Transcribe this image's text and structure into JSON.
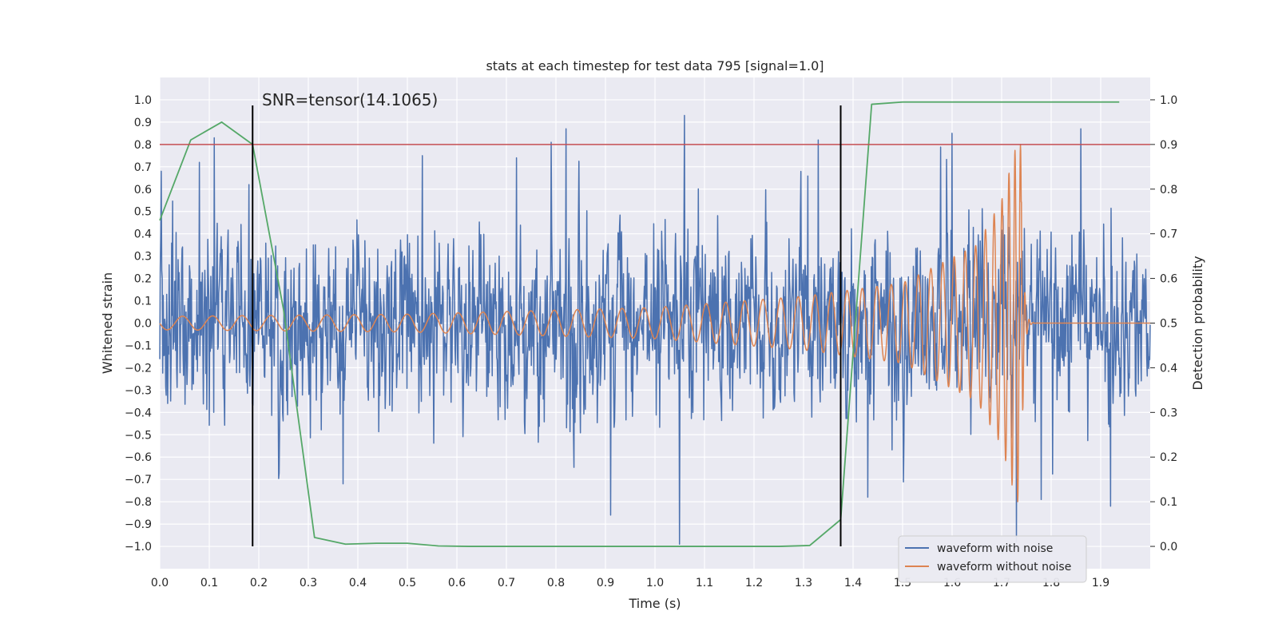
{
  "chart_data": {
    "type": "line",
    "title": "stats at each timestep for test data 795 [signal=1.0]",
    "xlabel": "Time (s)",
    "ylabel": "Whitened strain",
    "y2label": "Detection probability",
    "xlim": [
      0.0,
      2.0
    ],
    "ylim": [
      -1.1,
      1.1
    ],
    "y2lim": [
      -0.05,
      1.05
    ],
    "xticks": [
      "0.0",
      "0.1",
      "0.2",
      "0.3",
      "0.4",
      "0.5",
      "0.6",
      "0.7",
      "0.8",
      "0.9",
      "1.0",
      "1.1",
      "1.2",
      "1.3",
      "1.4",
      "1.5",
      "1.6",
      "1.7",
      "1.8",
      "1.9"
    ],
    "yticks": [
      "1.0",
      "0.9",
      "0.8",
      "0.7",
      "0.6",
      "0.5",
      "0.4",
      "0.3",
      "0.2",
      "0.1",
      "0.0",
      "−0.1",
      "−0.2",
      "−0.3",
      "−0.4",
      "−0.5",
      "−0.6",
      "−0.7",
      "−0.8",
      "−0.9",
      "−1.0"
    ],
    "y2ticks": [
      "1.0",
      "0.9",
      "0.8",
      "0.7",
      "0.6",
      "0.5",
      "0.4",
      "0.3",
      "0.2",
      "0.1",
      "0.0"
    ],
    "grid": true,
    "legend_position": "lower-right",
    "series": [
      {
        "name": "waveform with noise",
        "color": "#4c72b0",
        "axis": "left",
        "kind": "noise",
        "x_range": [
          0.0,
          2.0
        ],
        "samples": 2000,
        "envelope_std": 0.24,
        "peaks": [
          {
            "x": 0.11,
            "y": 0.83
          },
          {
            "x": 0.08,
            "y": 0.72
          },
          {
            "x": 0.18,
            "y": 0.62
          },
          {
            "x": 0.53,
            "y": 0.75
          },
          {
            "x": 0.72,
            "y": 0.74
          },
          {
            "x": 0.79,
            "y": 0.81
          },
          {
            "x": 0.82,
            "y": 0.87
          },
          {
            "x": 1.06,
            "y": 0.93
          },
          {
            "x": 1.33,
            "y": 0.82
          },
          {
            "x": 1.6,
            "y": 0.85
          },
          {
            "x": 1.73,
            "y": 0.97
          },
          {
            "x": 1.86,
            "y": 0.87
          },
          {
            "x": 1.05,
            "y": -0.99
          },
          {
            "x": 0.91,
            "y": -0.86
          },
          {
            "x": 1.73,
            "y": -0.98
          },
          {
            "x": 1.43,
            "y": -0.78
          },
          {
            "x": 1.78,
            "y": -0.79
          },
          {
            "x": 0.37,
            "y": -0.72
          },
          {
            "x": 1.92,
            "y": -0.82
          }
        ]
      },
      {
        "name": "waveform without noise",
        "color": "#dd8452",
        "axis": "left",
        "kind": "chirp",
        "x_range": [
          0.0,
          2.0
        ],
        "merger_time": 1.74,
        "points": [
          {
            "x": 0.0,
            "amp": 0.03,
            "freq": 16
          },
          {
            "x": 0.5,
            "amp": 0.04,
            "freq": 19
          },
          {
            "x": 1.0,
            "amp": 0.07,
            "freq": 23
          },
          {
            "x": 1.3,
            "amp": 0.12,
            "freq": 29
          },
          {
            "x": 1.5,
            "amp": 0.18,
            "freq": 36
          },
          {
            "x": 1.65,
            "amp": 0.35,
            "freq": 48
          },
          {
            "x": 1.7,
            "amp": 0.55,
            "freq": 65
          },
          {
            "x": 1.73,
            "amp": 0.8,
            "freq": 90
          }
        ]
      },
      {
        "name": "",
        "color": "#55a868",
        "axis": "right",
        "kind": "line",
        "x": [
          0.0,
          0.0625,
          0.125,
          0.1875,
          0.25,
          0.3125,
          0.375,
          0.4375,
          0.5,
          0.5625,
          0.625,
          0.6875,
          0.75,
          0.8125,
          0.875,
          0.9375,
          1.0,
          1.0625,
          1.125,
          1.1875,
          1.25,
          1.3125,
          1.375,
          1.4375,
          1.5,
          1.5625,
          1.625,
          1.6875,
          1.75,
          1.8125,
          1.875,
          1.9375
        ],
        "y": [
          0.73,
          0.91,
          0.95,
          0.9,
          0.53,
          0.02,
          0.005,
          0.007,
          0.007,
          0.001,
          0.0,
          0.0,
          0.0,
          0.0,
          0.0,
          0.0,
          0.0,
          0.0,
          0.0,
          0.0,
          0.0,
          0.002,
          0.06,
          0.99,
          0.995,
          0.995,
          0.995,
          0.995,
          0.995,
          0.995,
          0.995,
          0.995
        ]
      }
    ],
    "hlines": [
      {
        "y2": 0.9,
        "color": "#c44e52"
      }
    ],
    "vlines": [
      {
        "x": 0.1875,
        "color": "#000000"
      },
      {
        "x": 1.375,
        "color": "#000000"
      }
    ],
    "annotation": {
      "text": "SNR=tensor(14.1065)",
      "x": 0.2,
      "y": 1.0
    }
  }
}
